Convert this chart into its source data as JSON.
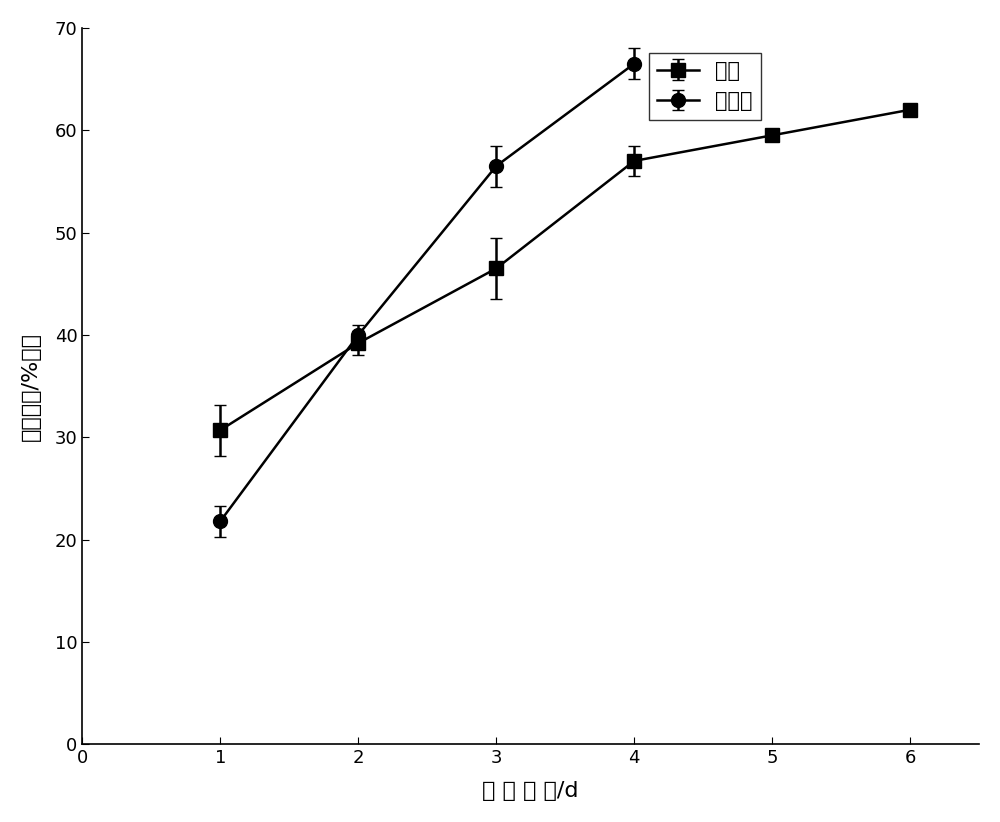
{
  "x": [
    1,
    2,
    3,
    4,
    5,
    6
  ],
  "glycerol_y": [
    30.7,
    39.2,
    46.5,
    57.0,
    59.5,
    62.0
  ],
  "glycerol_yerr": [
    2.5,
    1.2,
    3.0,
    1.5,
    0.0,
    0.0
  ],
  "glucose_y": [
    21.8,
    40.0,
    56.5,
    66.5,
    null,
    null
  ],
  "glucose_yerr": [
    1.5,
    1.0,
    2.0,
    1.5,
    0.0,
    0.0
  ],
  "xlabel": "发 酵 时 间/d",
  "ylabel": "脂质含量/%干菌",
  "xlim": [
    0,
    6.5
  ],
  "ylim": [
    0,
    70
  ],
  "yticks": [
    0,
    10,
    20,
    30,
    40,
    50,
    60,
    70
  ],
  "xticks": [
    0,
    1,
    2,
    3,
    4,
    5,
    6
  ],
  "legend_glycerol": "甘油",
  "legend_glucose": "葡萄糖",
  "line_color": "#000000",
  "marker_square": "s",
  "marker_circle": "o",
  "markersize": 10,
  "linewidth": 1.8,
  "capsize": 4,
  "fontsize_label": 16,
  "fontsize_tick": 13,
  "fontsize_legend": 15
}
